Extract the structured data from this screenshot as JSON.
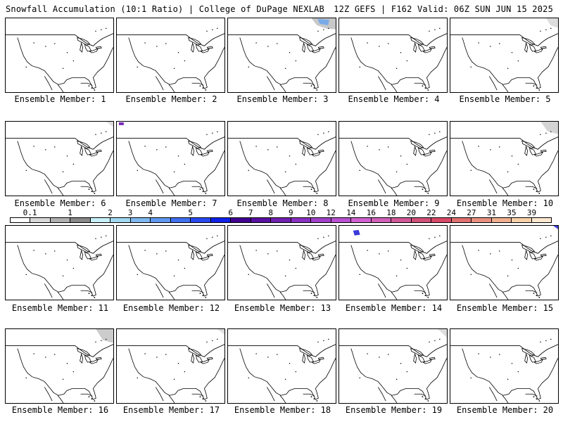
{
  "header": {
    "left": "Snowfall Accumulation (10:1 Ratio) | College of DuPage NEXLAB",
    "right": "12Z GEFS | F162 Valid: 06Z SUN JUN 15 2025"
  },
  "colorbar": {
    "labels": [
      "0.1",
      "1",
      "2",
      "3",
      "4",
      "5",
      "6",
      "7",
      "8",
      "9",
      "10",
      "12",
      "14",
      "16",
      "18",
      "20",
      "22",
      "24",
      "27",
      "31",
      "35",
      "39"
    ],
    "colors": [
      "#ffffff",
      "#d8d8d8",
      "#b0b0b0",
      "#888888",
      "#c8f0f8",
      "#a0d8f0",
      "#80b8f0",
      "#6098f0",
      "#4070f0",
      "#2848f0",
      "#1020e8",
      "#400090",
      "#5810a0",
      "#7020b0",
      "#8830c0",
      "#a040c8",
      "#b850d0",
      "#d060d0",
      "#d060b8",
      "#d05898",
      "#d05078",
      "#d84868",
      "#e07070",
      "#e89080",
      "#f0b090",
      "#f8d0a8",
      "#fce8d0"
    ]
  },
  "panels": [
    {
      "label": "Ensemble Member: 1",
      "blobs": []
    },
    {
      "label": "Ensemble Member: 2",
      "blobs": []
    },
    {
      "label": "Ensemble Member: 3",
      "blobs": [
        {
          "color": "#c8c8c8"
        },
        {
          "color": "#7aaae8"
        }
      ]
    },
    {
      "label": "Ensemble Member: 4",
      "blobs": [
        {
          "color": "#4040e0"
        }
      ]
    },
    {
      "label": "Ensemble Member: 5",
      "blobs": [
        {
          "color": "#dddddd"
        }
      ]
    },
    {
      "label": "Ensemble Member: 6",
      "blobs": [
        {
          "color": "#dddddd"
        }
      ]
    },
    {
      "label": "Ensemble Member: 7",
      "blobs": [
        {
          "color": "#7a2ab8"
        }
      ]
    },
    {
      "label": "Ensemble Member: 8",
      "blobs": []
    },
    {
      "label": "Ensemble Member: 9",
      "blobs": []
    },
    {
      "label": "Ensemble Member: 10",
      "blobs": [
        {
          "color": "#d4d4d4"
        }
      ]
    },
    {
      "label": "Ensemble Member: 11",
      "blobs": []
    },
    {
      "label": "Ensemble Member: 12",
      "blobs": []
    },
    {
      "label": "Ensemble Member: 13",
      "blobs": []
    },
    {
      "label": "Ensemble Member: 14",
      "blobs": [
        {
          "color": "#3a3ad8"
        }
      ]
    },
    {
      "label": "Ensemble Member: 15",
      "blobs": [
        {
          "color": "#4040e0"
        }
      ]
    },
    {
      "label": "Ensemble Member: 16",
      "blobs": [
        {
          "color": "#cccccc"
        }
      ]
    },
    {
      "label": "Ensemble Member: 17",
      "blobs": [
        {
          "color": "#dddddd"
        }
      ]
    },
    {
      "label": "Ensemble Member: 18",
      "blobs": []
    },
    {
      "label": "Ensemble Member: 19",
      "blobs": [
        {
          "color": "#dddddd"
        }
      ]
    },
    {
      "label": "Ensemble Member: 20",
      "blobs": []
    }
  ]
}
